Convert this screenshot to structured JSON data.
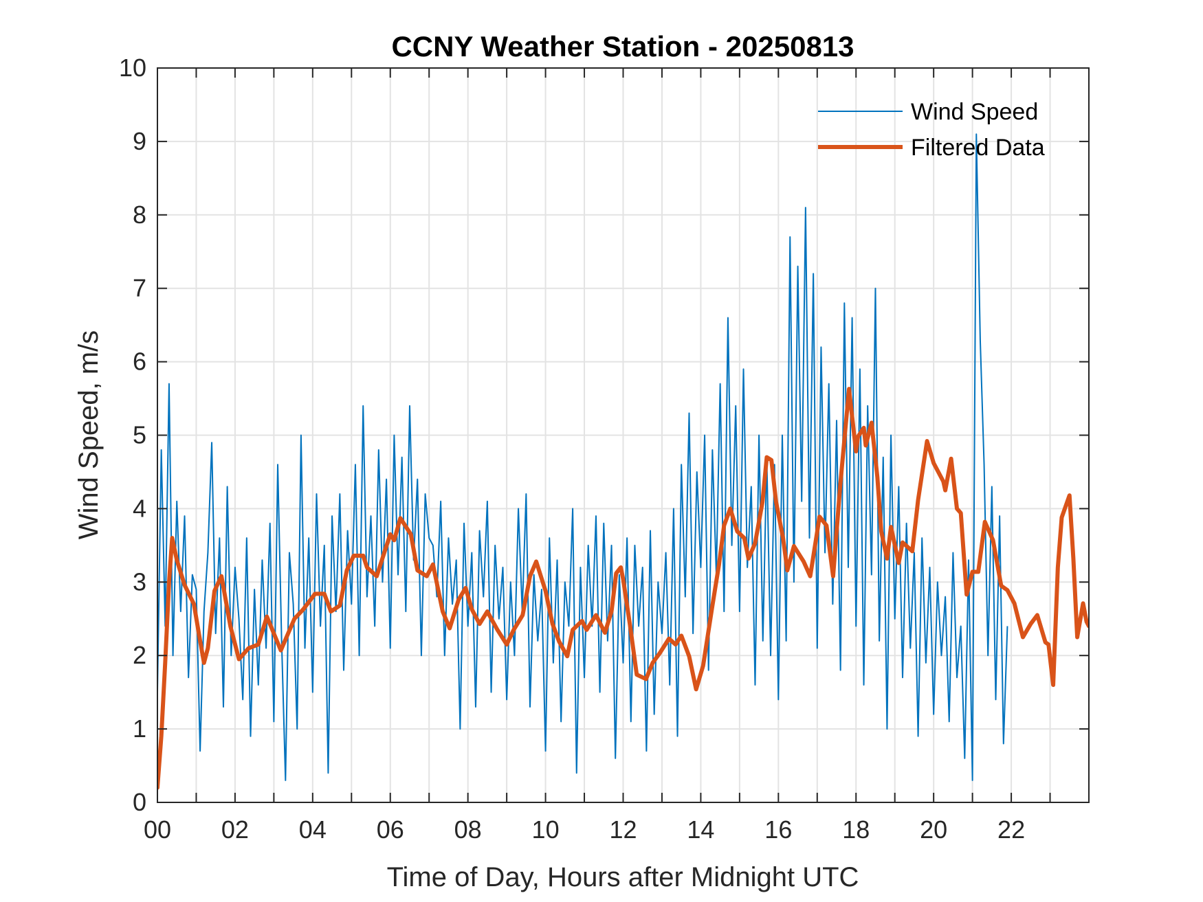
{
  "chart_data": {
    "type": "line",
    "title": "CCNY Weather Station - 20250813",
    "xlabel": "Time of Day, Hours after Midnight UTC",
    "ylabel": "Wind Speed, m/s",
    "xlim": [
      0,
      24
    ],
    "ylim": [
      0,
      10
    ],
    "xticks": [
      0,
      2,
      4,
      6,
      8,
      10,
      12,
      14,
      16,
      18,
      20,
      22
    ],
    "xtick_labels": [
      "00",
      "02",
      "04",
      "06",
      "08",
      "10",
      "12",
      "14",
      "16",
      "18",
      "20",
      "22"
    ],
    "yticks": [
      0,
      1,
      2,
      3,
      4,
      5,
      6,
      7,
      8,
      9,
      10
    ],
    "ytick_labels": [
      "0",
      "1",
      "2",
      "3",
      "4",
      "5",
      "6",
      "7",
      "8",
      "9",
      "10"
    ],
    "minor_xgrid_step_hours": 1,
    "grid": true,
    "legend": {
      "placement": "top-right",
      "entries": [
        "Wind Speed",
        "Filtered Data"
      ]
    },
    "series": [
      {
        "name": "Wind Speed",
        "color": "#0072BD",
        "x_step_hours": 0.1,
        "values": [
          1.5,
          4.8,
          2.4,
          5.7,
          2.0,
          4.1,
          2.6,
          3.9,
          1.7,
          3.1,
          2.9,
          0.7,
          2.6,
          3.4,
          4.9,
          2.3,
          3.6,
          1.3,
          4.3,
          2.0,
          3.2,
          2.5,
          1.4,
          3.6,
          0.9,
          2.9,
          1.6,
          3.3,
          2.1,
          3.8,
          1.1,
          4.6,
          2.2,
          0.3,
          3.4,
          2.7,
          1.0,
          5.0,
          2.1,
          3.6,
          1.5,
          4.2,
          2.4,
          3.5,
          0.4,
          3.9,
          2.6,
          4.2,
          1.8,
          3.7,
          2.7,
          4.6,
          2.0,
          5.4,
          2.8,
          3.9,
          2.4,
          4.8,
          3.0,
          4.4,
          2.1,
          5.0,
          3.1,
          4.7,
          2.6,
          5.4,
          3.3,
          4.4,
          2.0,
          4.2,
          3.6,
          3.5,
          2.8,
          4.1,
          2.0,
          3.6,
          2.7,
          3.3,
          1.0,
          3.8,
          2.4,
          3.4,
          1.3,
          3.7,
          2.8,
          4.1,
          1.5,
          3.5,
          2.5,
          3.2,
          1.4,
          3.0,
          2.0,
          4.0,
          2.6,
          4.2,
          1.3,
          3.1,
          2.2,
          2.9,
          0.7,
          3.6,
          1.9,
          3.3,
          1.1,
          3.0,
          2.4,
          4.0,
          0.4,
          3.2,
          1.7,
          3.5,
          2.4,
          3.9,
          1.5,
          3.8,
          2.2,
          3.5,
          0.6,
          3.1,
          1.9,
          3.6,
          1.1,
          3.5,
          2.4,
          3.2,
          0.7,
          3.7,
          1.2,
          3.0,
          2.3,
          3.4,
          1.6,
          4.0,
          0.9,
          4.6,
          2.8,
          5.3,
          2.3,
          4.5,
          3.2,
          5.0,
          1.8,
          4.8,
          3.1,
          5.7,
          2.6,
          6.6,
          3.5,
          5.4,
          2.6,
          5.9,
          3.2,
          4.3,
          1.6,
          5.0,
          2.2,
          4.7,
          2.0,
          4.6,
          1.4,
          5.0,
          2.2,
          7.7,
          3.0,
          7.3,
          4.1,
          8.1,
          3.6,
          7.2,
          2.1,
          6.2,
          3.4,
          5.7,
          2.7,
          5.2,
          1.8,
          6.8,
          3.2,
          6.6,
          2.4,
          5.9,
          1.6,
          5.4,
          3.1,
          7.0,
          2.2,
          4.7,
          1.0,
          5.0,
          2.5,
          4.3,
          1.7,
          3.8,
          2.1,
          3.4,
          0.9,
          3.6,
          1.9,
          3.2,
          1.2,
          3.0,
          2.0,
          2.8,
          1.1,
          3.4,
          1.7,
          2.4,
          0.6,
          3.3,
          0.3,
          9.1,
          6.3,
          4.6,
          2.0,
          4.3,
          1.4,
          3.9,
          0.8,
          2.4
        ]
      },
      {
        "name": "Filtered Data",
        "color": "#D95319",
        "points": [
          [
            0.0,
            0.2
          ],
          [
            0.1,
            0.9
          ],
          [
            0.2,
            1.9
          ],
          [
            0.3,
            3.0
          ],
          [
            0.38,
            3.6
          ],
          [
            0.5,
            3.3
          ],
          [
            0.7,
            2.96
          ],
          [
            0.94,
            2.7
          ],
          [
            1.1,
            2.2
          ],
          [
            1.2,
            1.9
          ],
          [
            1.3,
            2.1
          ],
          [
            1.47,
            2.88
          ],
          [
            1.65,
            3.08
          ],
          [
            1.88,
            2.4
          ],
          [
            2.1,
            1.95
          ],
          [
            2.35,
            2.1
          ],
          [
            2.6,
            2.15
          ],
          [
            2.82,
            2.53
          ],
          [
            3.0,
            2.3
          ],
          [
            3.18,
            2.07
          ],
          [
            3.53,
            2.5
          ],
          [
            3.76,
            2.63
          ],
          [
            4.06,
            2.84
          ],
          [
            4.3,
            2.84
          ],
          [
            4.47,
            2.6
          ],
          [
            4.7,
            2.68
          ],
          [
            4.88,
            3.16
          ],
          [
            5.06,
            3.36
          ],
          [
            5.3,
            3.36
          ],
          [
            5.4,
            3.2
          ],
          [
            5.65,
            3.08
          ],
          [
            5.9,
            3.49
          ],
          [
            6.0,
            3.65
          ],
          [
            6.1,
            3.57
          ],
          [
            6.26,
            3.87
          ],
          [
            6.53,
            3.65
          ],
          [
            6.7,
            3.16
          ],
          [
            6.94,
            3.08
          ],
          [
            7.1,
            3.24
          ],
          [
            7.35,
            2.6
          ],
          [
            7.53,
            2.37
          ],
          [
            7.76,
            2.76
          ],
          [
            7.94,
            2.92
          ],
          [
            8.1,
            2.63
          ],
          [
            8.3,
            2.43
          ],
          [
            8.5,
            2.6
          ],
          [
            8.76,
            2.35
          ],
          [
            9.0,
            2.15
          ],
          [
            9.18,
            2.35
          ],
          [
            9.41,
            2.55
          ],
          [
            9.6,
            3.08
          ],
          [
            9.76,
            3.28
          ],
          [
            10.0,
            2.88
          ],
          [
            10.18,
            2.43
          ],
          [
            10.35,
            2.19
          ],
          [
            10.56,
            1.99
          ],
          [
            10.7,
            2.35
          ],
          [
            10.94,
            2.47
          ],
          [
            11.06,
            2.35
          ],
          [
            11.3,
            2.55
          ],
          [
            11.53,
            2.31
          ],
          [
            11.7,
            2.6
          ],
          [
            11.82,
            3.12
          ],
          [
            11.94,
            3.2
          ],
          [
            12.0,
            3.04
          ],
          [
            12.18,
            2.4
          ],
          [
            12.35,
            1.74
          ],
          [
            12.59,
            1.68
          ],
          [
            12.76,
            1.9
          ],
          [
            12.94,
            2.03
          ],
          [
            13.18,
            2.23
          ],
          [
            13.35,
            2.15
          ],
          [
            13.5,
            2.27
          ],
          [
            13.7,
            1.99
          ],
          [
            13.88,
            1.54
          ],
          [
            14.06,
            1.86
          ],
          [
            14.3,
            2.68
          ],
          [
            14.47,
            3.24
          ],
          [
            14.6,
            3.77
          ],
          [
            14.76,
            4.0
          ],
          [
            14.94,
            3.69
          ],
          [
            15.12,
            3.6
          ],
          [
            15.23,
            3.32
          ],
          [
            15.4,
            3.53
          ],
          [
            15.59,
            4.09
          ],
          [
            15.7,
            4.7
          ],
          [
            15.82,
            4.66
          ],
          [
            15.94,
            4.09
          ],
          [
            16.12,
            3.6
          ],
          [
            16.23,
            3.16
          ],
          [
            16.4,
            3.49
          ],
          [
            16.65,
            3.28
          ],
          [
            16.82,
            3.08
          ],
          [
            17.06,
            3.89
          ],
          [
            17.24,
            3.77
          ],
          [
            17.41,
            3.08
          ],
          [
            17.59,
            4.3
          ],
          [
            17.82,
            5.63
          ],
          [
            18.0,
            4.78
          ],
          [
            18.05,
            4.98
          ],
          [
            18.2,
            5.1
          ],
          [
            18.25,
            4.86
          ],
          [
            18.4,
            5.17
          ],
          [
            18.55,
            4.43
          ],
          [
            18.65,
            3.69
          ],
          [
            18.8,
            3.32
          ],
          [
            18.9,
            3.75
          ],
          [
            19.1,
            3.26
          ],
          [
            19.2,
            3.54
          ],
          [
            19.45,
            3.42
          ],
          [
            19.6,
            4.12
          ],
          [
            19.83,
            4.92
          ],
          [
            20.0,
            4.62
          ],
          [
            20.25,
            4.37
          ],
          [
            20.3,
            4.25
          ],
          [
            20.45,
            4.68
          ],
          [
            20.6,
            4.0
          ],
          [
            20.7,
            3.94
          ],
          [
            20.85,
            2.83
          ],
          [
            21.0,
            3.14
          ],
          [
            21.15,
            3.14
          ],
          [
            21.32,
            3.82
          ],
          [
            21.53,
            3.57
          ],
          [
            21.74,
            2.95
          ],
          [
            21.9,
            2.89
          ],
          [
            22.08,
            2.71
          ],
          [
            22.3,
            2.25
          ],
          [
            22.5,
            2.43
          ],
          [
            22.67,
            2.55
          ],
          [
            22.88,
            2.18
          ],
          [
            22.96,
            2.15
          ],
          [
            23.08,
            1.6
          ],
          [
            23.2,
            3.2
          ],
          [
            23.3,
            3.88
          ],
          [
            23.5,
            4.18
          ],
          [
            23.6,
            3.32
          ],
          [
            23.7,
            2.25
          ],
          [
            23.85,
            2.71
          ],
          [
            23.94,
            2.46
          ],
          [
            24.0,
            2.4
          ]
        ]
      }
    ]
  }
}
